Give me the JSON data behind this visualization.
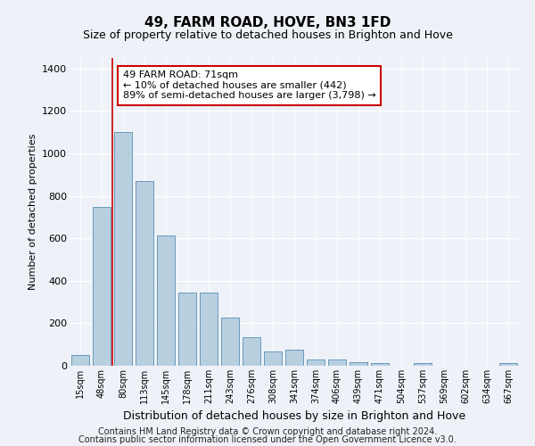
{
  "title": "49, FARM ROAD, HOVE, BN3 1FD",
  "subtitle": "Size of property relative to detached houses in Brighton and Hove",
  "xlabel": "Distribution of detached houses by size in Brighton and Hove",
  "ylabel": "Number of detached properties",
  "categories": [
    "15sqm",
    "48sqm",
    "80sqm",
    "113sqm",
    "145sqm",
    "178sqm",
    "211sqm",
    "243sqm",
    "276sqm",
    "308sqm",
    "341sqm",
    "374sqm",
    "406sqm",
    "439sqm",
    "471sqm",
    "504sqm",
    "537sqm",
    "569sqm",
    "602sqm",
    "634sqm",
    "667sqm"
  ],
  "values": [
    52,
    750,
    1100,
    870,
    615,
    345,
    345,
    225,
    135,
    68,
    75,
    28,
    28,
    18,
    14,
    0,
    12,
    0,
    0,
    0,
    14
  ],
  "bar_color": "#b8cfe0",
  "bar_edge_color": "#6899bb",
  "vline_x_index": 1.5,
  "vline_color": "#cc0000",
  "annotation_text": "49 FARM ROAD: 71sqm\n← 10% of detached houses are smaller (442)\n89% of semi-detached houses are larger (3,798) →",
  "annotation_box_color": "#ffffff",
  "annotation_box_edge_color": "#cc0000",
  "ylim": [
    0,
    1450
  ],
  "yticks": [
    0,
    200,
    400,
    600,
    800,
    1000,
    1200,
    1400
  ],
  "background_color": "#eef2f8",
  "footer_line1": "Contains HM Land Registry data © Crown copyright and database right 2024.",
  "footer_line2": "Contains public sector information licensed under the Open Government Licence v3.0.",
  "title_fontsize": 11,
  "subtitle_fontsize": 9,
  "xlabel_fontsize": 9,
  "ylabel_fontsize": 8,
  "annotation_fontsize": 8,
  "footer_fontsize": 7
}
